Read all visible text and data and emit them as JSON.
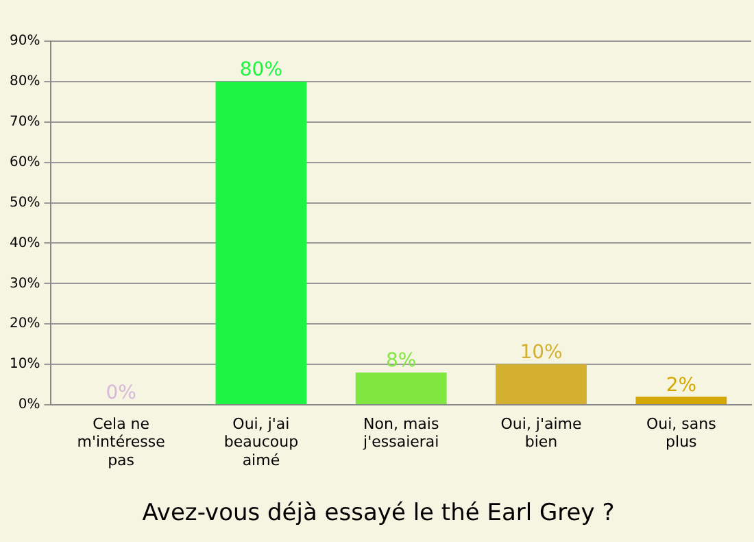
{
  "chart_data": {
    "type": "bar",
    "title": "Avez-vous déjà essayé le thé Earl Grey ?",
    "categories": [
      "Cela ne m'intéresse pas",
      "Oui, j'ai beaucoup aimé",
      "Non, mais j'essaierai",
      "Oui, j'aime bien",
      "Oui, sans plus"
    ],
    "values": [
      0,
      80,
      8,
      10,
      2
    ],
    "colors": [
      "#d8b8d8",
      "#1ef542",
      "#80e640",
      "#d4b030",
      "#d4a800"
    ],
    "value_labels": [
      "0%",
      "80%",
      "8%",
      "10%",
      "2%"
    ],
    "ylim": [
      0,
      90
    ],
    "yticks": [
      {
        "value": 0,
        "label": "0%"
      },
      {
        "value": 10,
        "label": "10%"
      },
      {
        "value": 20,
        "label": "20%"
      },
      {
        "value": 30,
        "label": "30%"
      },
      {
        "value": 40,
        "label": "40%"
      },
      {
        "value": 50,
        "label": "50%"
      },
      {
        "value": 60,
        "label": "60%"
      },
      {
        "value": 70,
        "label": "70%"
      },
      {
        "value": 80,
        "label": "80%"
      },
      {
        "value": 90,
        "label": "90%"
      }
    ],
    "grid": "y",
    "legend": false
  }
}
